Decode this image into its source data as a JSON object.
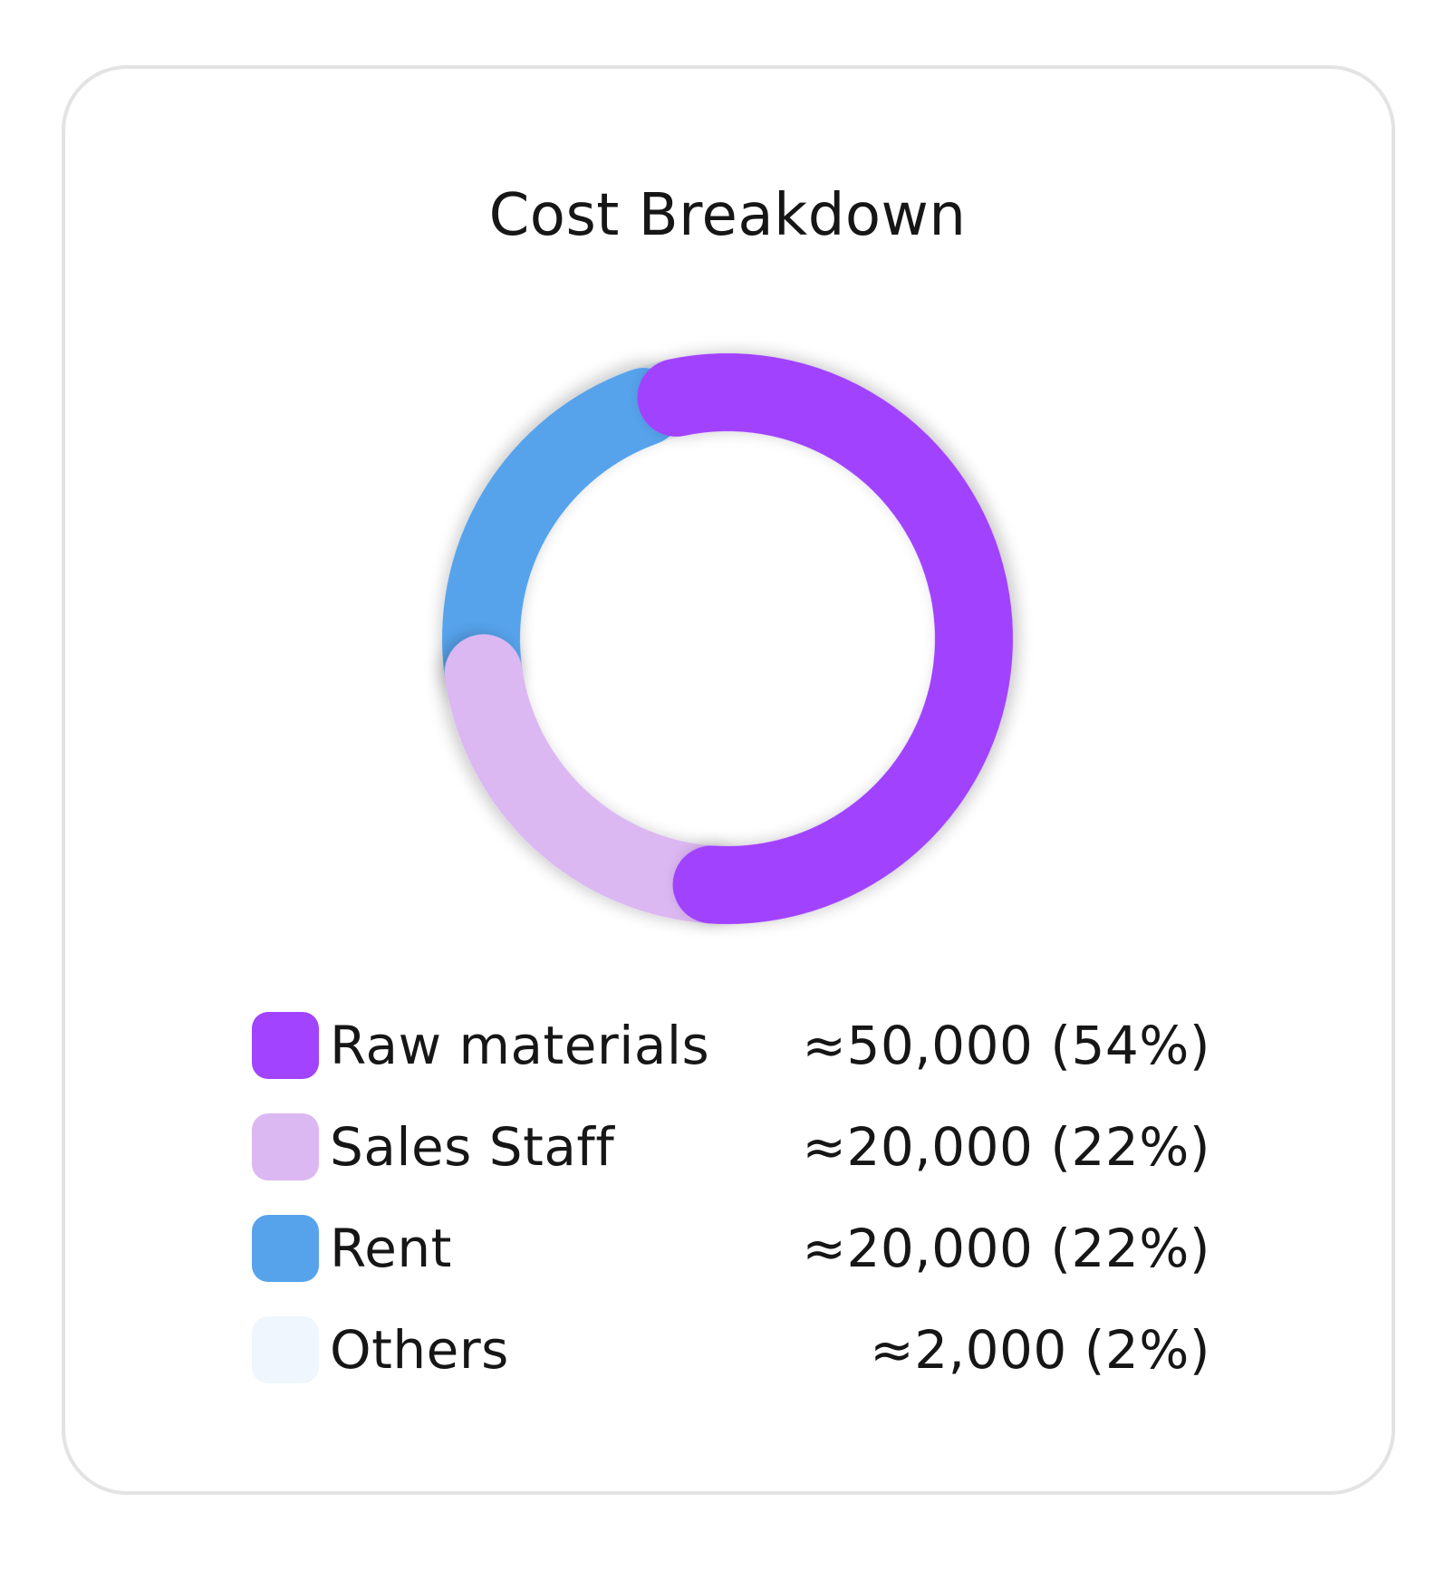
{
  "chart_data": {
    "type": "pie",
    "title": "Cost Breakdown",
    "categories": [
      "Raw materials",
      "Sales Staff",
      "Rent",
      "Others"
    ],
    "values": [
      50000,
      20000,
      20000,
      2000
    ],
    "percentages": [
      54,
      22,
      22,
      2
    ],
    "value_labels": [
      "≈50,000 (54%)",
      "≈20,000 (22%)",
      "≈20,000 (22%)",
      "≈2,000 (2%)"
    ],
    "colors": [
      "#a143ff",
      "#dcb8f2",
      "#56a3ec",
      "#eff6fd"
    ],
    "style": "donut",
    "legend": "bottom"
  }
}
